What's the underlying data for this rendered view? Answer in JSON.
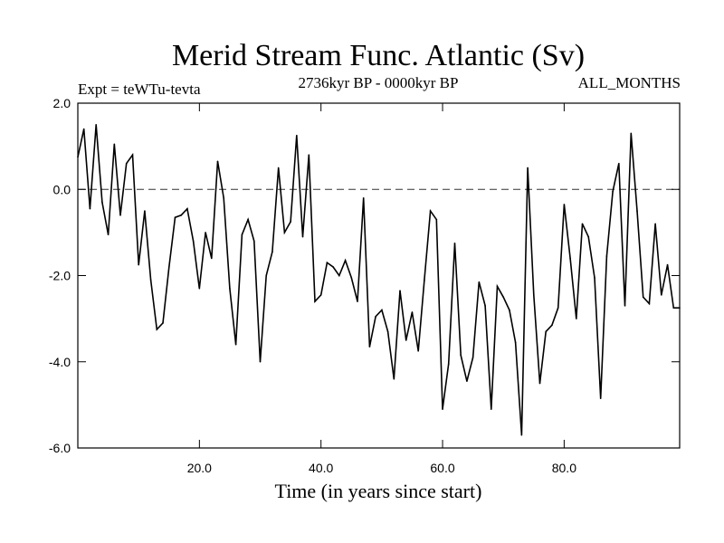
{
  "chart_data": {
    "type": "line",
    "title": "Merid Stream Func. Atlantic (Sv)",
    "subtitle_left": "Expt = teWTu-tevta",
    "subtitle_center": "2736kyr BP - 0000kyr BP",
    "subtitle_right": "ALL_MONTHS",
    "xlabel": "Time (in years since start)",
    "ylabel": "",
    "xlim": [
      0,
      99
    ],
    "ylim": [
      -6,
      2
    ],
    "xticks": [
      20,
      40,
      60,
      80
    ],
    "xtick_labels": [
      "20.0",
      "40.0",
      "60.0",
      "80.0"
    ],
    "yticks": [
      2,
      0,
      -2,
      -4,
      -6
    ],
    "ytick_labels": [
      "2.0",
      "0.0",
      "-2.0",
      "-4.0",
      "-6.0"
    ],
    "zero_line": true,
    "series": [
      {
        "name": "Merid Stream Func. Atlantic",
        "x": [
          0,
          1,
          2,
          3,
          4,
          5,
          6,
          7,
          8,
          9,
          10,
          11,
          12,
          13,
          14,
          15,
          16,
          17,
          18,
          19,
          20,
          21,
          22,
          23,
          24,
          25,
          26,
          27,
          28,
          29,
          30,
          31,
          32,
          33,
          34,
          35,
          36,
          37,
          38,
          39,
          40,
          41,
          42,
          43,
          44,
          45,
          46,
          47,
          48,
          49,
          50,
          51,
          52,
          53,
          54,
          55,
          56,
          57,
          58,
          59,
          60,
          61,
          62,
          63,
          64,
          65,
          66,
          67,
          68,
          69,
          70,
          71,
          72,
          73,
          74,
          75,
          76,
          77,
          78,
          79,
          80,
          81,
          82,
          83,
          84,
          85,
          86,
          87,
          88,
          89,
          90,
          91,
          92,
          93,
          94,
          95,
          96,
          97,
          98,
          99
        ],
        "values": [
          0.75,
          1.4,
          -0.45,
          1.5,
          -0.3,
          -1.05,
          1.05,
          -0.6,
          0.6,
          0.8,
          -1.75,
          -0.5,
          -2.1,
          -3.25,
          -3.1,
          -1.8,
          -0.65,
          -0.6,
          -0.45,
          -1.2,
          -2.3,
          -1.0,
          -1.6,
          0.65,
          -0.2,
          -2.3,
          -3.6,
          -1.05,
          -0.7,
          -1.2,
          -4.0,
          -2.0,
          -1.45,
          0.5,
          -1.0,
          -0.75,
          1.25,
          -1.1,
          0.8,
          -2.6,
          -2.45,
          -1.7,
          -1.8,
          -2.0,
          -1.65,
          -2.05,
          -2.6,
          -0.2,
          -3.65,
          -2.95,
          -2.8,
          -3.3,
          -4.4,
          -2.35,
          -3.5,
          -2.85,
          -3.75,
          -2.1,
          -0.5,
          -0.7,
          -5.1,
          -4.05,
          -1.25,
          -3.85,
          -4.45,
          -3.9,
          -2.15,
          -2.7,
          -5.1,
          -2.25,
          -2.5,
          -2.8,
          -3.55,
          -5.7,
          0.5,
          -2.45,
          -4.5,
          -3.3,
          -3.15,
          -2.75,
          -0.35,
          -1.6,
          -3.0,
          -0.8,
          -1.1,
          -2.05,
          -4.85,
          -1.55,
          -0.05,
          0.6,
          -2.7,
          1.3,
          -0.5,
          -2.5,
          -2.65,
          -0.8,
          -2.45,
          -1.75,
          -2.75,
          -2.75
        ]
      }
    ],
    "colors": {
      "line": "#000000",
      "zero_line": "#333333",
      "axis": "#000000"
    }
  }
}
